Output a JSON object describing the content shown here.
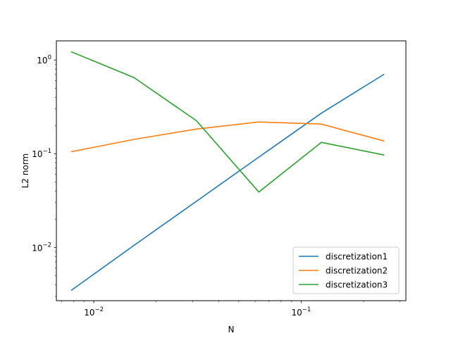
{
  "chart_data": {
    "type": "line",
    "title": "",
    "xlabel": "N",
    "ylabel": "L2 norm",
    "xscale": "log",
    "yscale": "log",
    "xlim": [
      0.0066,
      0.32
    ],
    "ylim": [
      0.0027,
      1.6
    ],
    "grid": false,
    "legend_position": "lower-right",
    "x_tick_labels": [
      {
        "value": 0.01,
        "base": "10",
        "exp": "−2"
      },
      {
        "value": 0.1,
        "base": "10",
        "exp": "−1"
      }
    ],
    "y_tick_labels": [
      {
        "value": 0.01,
        "base": "10",
        "exp": "−2"
      },
      {
        "value": 0.1,
        "base": "10",
        "exp": "−1"
      },
      {
        "value": 1,
        "base": "10",
        "exp": "0"
      }
    ],
    "x": [
      0.0078125,
      0.015625,
      0.03125,
      0.0625,
      0.125,
      0.25
    ],
    "series": [
      {
        "name": "discretization1",
        "color": "#1f77b4",
        "values": [
          0.0035,
          0.0105,
          0.031,
          0.092,
          0.27,
          0.7
        ]
      },
      {
        "name": "discretization2",
        "color": "#ff7f0e",
        "values": [
          0.105,
          0.142,
          0.183,
          0.218,
          0.207,
          0.137
        ]
      },
      {
        "name": "discretization3",
        "color": "#2ca02c",
        "values": [
          1.22,
          0.65,
          0.225,
          0.039,
          0.132,
          0.097
        ]
      }
    ]
  }
}
